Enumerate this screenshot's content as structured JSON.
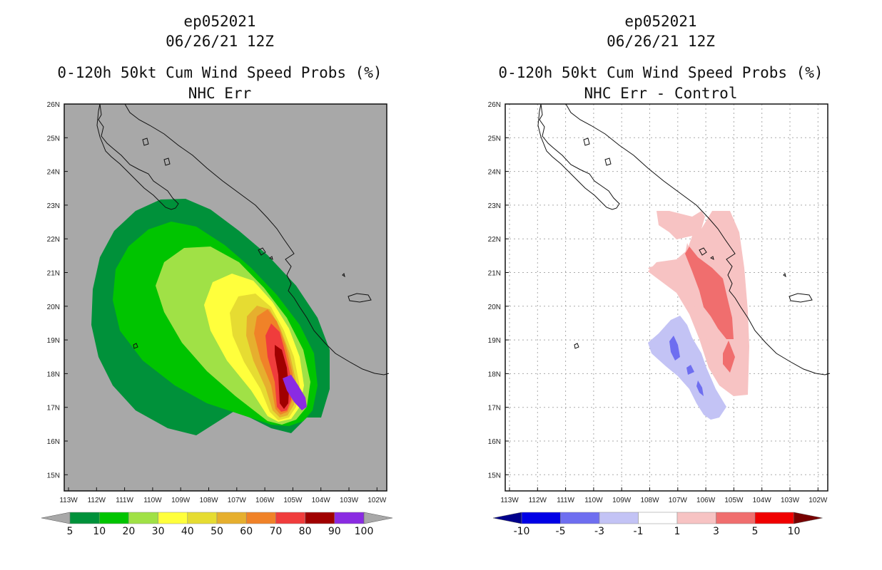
{
  "panels": [
    {
      "id": "left",
      "storm_id": "ep052021",
      "datetime": "06/26/21 12Z",
      "title": "0-120h 50kt Cum Wind Speed Probs (%)",
      "subtitle": "NHC Err",
      "background": "#a8a8a8",
      "colorbar": {
        "labels": [
          "5",
          "10",
          "20",
          "30",
          "40",
          "50",
          "60",
          "70",
          "80",
          "90",
          "100"
        ],
        "colors": [
          "#00913a",
          "#00c400",
          "#a0e146",
          "#ffff3c",
          "#e6dc32",
          "#e6af2e",
          "#f08228",
          "#f03c3c",
          "#a00000",
          "#8a2be2"
        ],
        "left_arrow_color": "#a8a8a8",
        "right_arrow_color": "#a8a8a8"
      }
    },
    {
      "id": "right",
      "storm_id": "ep052021",
      "datetime": "06/26/21 12Z",
      "title": "0-120h 50kt Cum Wind Speed Probs (%)",
      "subtitle": "NHC Err - Control",
      "background": "#ffffff",
      "colorbar": {
        "labels": [
          "-10",
          "-5",
          "-3",
          "-1",
          "1",
          "3",
          "5",
          "10"
        ],
        "colors": [
          "#0000e6",
          "#6e6ef0",
          "#c3c3f5",
          "#ffffff",
          "#f7c3c3",
          "#f06e6e",
          "#f00000"
        ],
        "left_arrow_color": "#00008c",
        "right_arrow_color": "#780000"
      }
    }
  ],
  "axes": {
    "lat_labels": [
      "26N",
      "25N",
      "24N",
      "23N",
      "22N",
      "21N",
      "20N",
      "19N",
      "18N",
      "17N",
      "16N",
      "15N"
    ],
    "lon_labels": [
      "113W",
      "112W",
      "111W",
      "110W",
      "109W",
      "108W",
      "107W",
      "106W",
      "105W",
      "104W",
      "103W",
      "102W"
    ]
  }
}
